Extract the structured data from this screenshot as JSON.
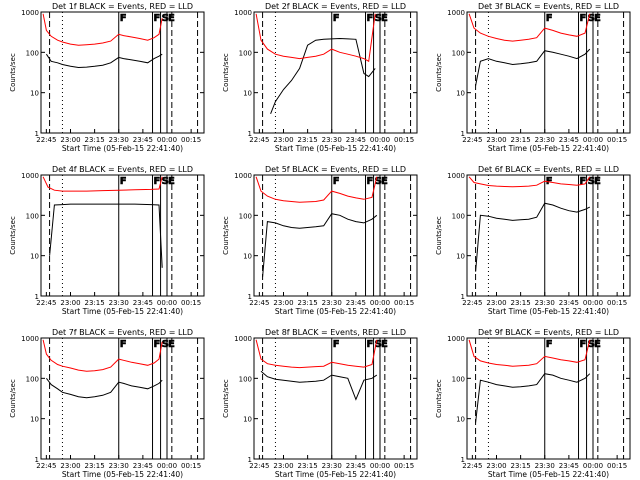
{
  "page": {
    "background": "#ffffff"
  },
  "colors": {
    "events": "#000000",
    "lld": "#ff0000",
    "axes": "#000000"
  },
  "shared": {
    "ylabel": "Counts/sec",
    "xlabel": "Start Time (05-Feb-15 22:41:40)",
    "x_ticks": [
      "22:45",
      "23:00",
      "23:15",
      "23:30",
      "23:45",
      "00:00",
      "00:15"
    ],
    "y_ticks": [
      "1",
      "10",
      "100",
      "1000"
    ],
    "markers": [
      {
        "label": "F",
        "time": "23:30"
      },
      {
        "label": "F",
        "time": "23:51"
      },
      {
        "label": "S",
        "time": "23:56"
      },
      {
        "label": "E",
        "time": "00:00"
      }
    ]
  },
  "chart_data": [
    {
      "type": "line",
      "title": "Det 1f BLACK = Events, RED = LLD",
      "xlim": [
        "22:41:40",
        "00:23"
      ],
      "ylim": [
        1,
        1000
      ],
      "yscale": "log",
      "series": [
        {
          "name": "Events",
          "color": "#000000",
          "x": [
            "22:45",
            "22:48",
            "22:52",
            "22:55",
            "23:00",
            "23:05",
            "23:10",
            "23:15",
            "23:20",
            "23:25",
            "23:30",
            "23:33",
            "23:38",
            "23:43",
            "23:48",
            "23:52",
            "23:55",
            "23:57"
          ],
          "y": [
            90,
            60,
            55,
            50,
            45,
            42,
            43,
            45,
            48,
            55,
            75,
            70,
            65,
            60,
            55,
            70,
            80,
            90
          ]
        },
        {
          "name": "LLD",
          "color": "#ff0000",
          "x": [
            "22:43",
            "22:45",
            "22:48",
            "22:52",
            "22:55",
            "23:00",
            "23:05",
            "23:10",
            "23:15",
            "23:20",
            "23:25",
            "23:30",
            "23:33",
            "23:38",
            "23:43",
            "23:48",
            "23:52",
            "23:55",
            "23:57"
          ],
          "y": [
            900,
            350,
            250,
            200,
            180,
            160,
            150,
            155,
            160,
            170,
            190,
            280,
            260,
            240,
            220,
            200,
            230,
            280,
            700
          ]
        }
      ]
    },
    {
      "type": "line",
      "title": "Det 2f BLACK = Events, RED = LLD",
      "xlim": [
        "22:41:40",
        "00:23"
      ],
      "ylim": [
        1,
        1000
      ],
      "yscale": "log",
      "series": [
        {
          "name": "Events",
          "color": "#000000",
          "x": [
            "22:52",
            "22:55",
            "23:00",
            "23:05",
            "23:10",
            "23:15",
            "23:20",
            "23:25",
            "23:30",
            "23:35",
            "23:40",
            "23:45",
            "23:50",
            "23:53",
            "23:57"
          ],
          "y": [
            3,
            6,
            12,
            20,
            40,
            150,
            200,
            210,
            215,
            220,
            215,
            210,
            30,
            25,
            40
          ]
        },
        {
          "name": "LLD",
          "color": "#ff0000",
          "x": [
            "22:43",
            "22:46",
            "22:50",
            "22:55",
            "23:00",
            "23:05",
            "23:10",
            "23:15",
            "23:20",
            "23:25",
            "23:30",
            "23:35",
            "23:40",
            "23:45",
            "23:50",
            "23:53",
            "23:57"
          ],
          "y": [
            900,
            200,
            120,
            90,
            80,
            75,
            70,
            75,
            80,
            90,
            120,
            100,
            90,
            80,
            70,
            60,
            900
          ]
        }
      ]
    },
    {
      "type": "line",
      "title": "Det 3f BLACK = Events, RED = LLD",
      "xlim": [
        "22:41:40",
        "00:23"
      ],
      "ylim": [
        1,
        1000
      ],
      "yscale": "log",
      "series": [
        {
          "name": "Events",
          "color": "#000000",
          "x": [
            "22:47",
            "22:50",
            "22:55",
            "23:00",
            "23:05",
            "23:10",
            "23:15",
            "23:20",
            "23:25",
            "23:30",
            "23:35",
            "23:40",
            "23:45",
            "23:50",
            "23:55",
            "23:58"
          ],
          "y": [
            15,
            60,
            70,
            60,
            55,
            50,
            52,
            55,
            60,
            110,
            100,
            90,
            80,
            70,
            90,
            120
          ]
        },
        {
          "name": "LLD",
          "color": "#ff0000",
          "x": [
            "22:43",
            "22:46",
            "22:50",
            "22:55",
            "23:00",
            "23:05",
            "23:10",
            "23:15",
            "23:20",
            "23:25",
            "23:30",
            "23:35",
            "23:40",
            "23:45",
            "23:50",
            "23:55",
            "23:58"
          ],
          "y": [
            900,
            400,
            300,
            250,
            220,
            200,
            190,
            200,
            210,
            230,
            400,
            350,
            300,
            270,
            250,
            300,
            900
          ]
        }
      ]
    },
    {
      "type": "line",
      "title": "Det 4f BLACK = Events, RED = LLD",
      "xlim": [
        "22:41:40",
        "00:23"
      ],
      "ylim": [
        1,
        1000
      ],
      "yscale": "log",
      "series": [
        {
          "name": "Events",
          "color": "#000000",
          "x": [
            "22:47",
            "22:50",
            "22:55",
            "23:00",
            "23:10",
            "23:20",
            "23:30",
            "23:40",
            "23:50",
            "23:55",
            "23:57"
          ],
          "y": [
            10,
            180,
            185,
            190,
            190,
            190,
            190,
            190,
            185,
            180,
            5
          ]
        },
        {
          "name": "LLD",
          "color": "#ff0000",
          "x": [
            "22:43",
            "22:46",
            "22:50",
            "22:55",
            "23:00",
            "23:10",
            "23:20",
            "23:30",
            "23:40",
            "23:50",
            "23:55",
            "23:57"
          ],
          "y": [
            900,
            500,
            420,
            400,
            400,
            400,
            410,
            420,
            430,
            440,
            450,
            900
          ]
        }
      ]
    },
    {
      "type": "line",
      "title": "Det 5f BLACK = Events, RED = LLD",
      "xlim": [
        "22:41:40",
        "00:23"
      ],
      "ylim": [
        1,
        1000
      ],
      "yscale": "log",
      "series": [
        {
          "name": "Events",
          "color": "#000000",
          "x": [
            "22:47",
            "22:50",
            "22:55",
            "23:00",
            "23:05",
            "23:10",
            "23:15",
            "23:20",
            "23:25",
            "23:30",
            "23:35",
            "23:40",
            "23:45",
            "23:50",
            "23:55",
            "23:58"
          ],
          "y": [
            3,
            70,
            65,
            55,
            50,
            48,
            50,
            52,
            55,
            110,
            100,
            80,
            70,
            65,
            80,
            100
          ]
        },
        {
          "name": "LLD",
          "color": "#ff0000",
          "x": [
            "22:43",
            "22:46",
            "22:50",
            "22:55",
            "23:00",
            "23:05",
            "23:10",
            "23:15",
            "23:20",
            "23:25",
            "23:30",
            "23:35",
            "23:40",
            "23:45",
            "23:50",
            "23:55",
            "23:58"
          ],
          "y": [
            900,
            400,
            300,
            250,
            230,
            220,
            210,
            215,
            220,
            240,
            400,
            350,
            300,
            270,
            250,
            280,
            900
          ]
        }
      ]
    },
    {
      "type": "line",
      "title": "Det 6f BLACK = Events, RED = LLD",
      "xlim": [
        "22:41:40",
        "00:23"
      ],
      "ylim": [
        1,
        1000
      ],
      "yscale": "log",
      "series": [
        {
          "name": "Events",
          "color": "#000000",
          "x": [
            "22:47",
            "22:50",
            "22:55",
            "23:00",
            "23:05",
            "23:10",
            "23:15",
            "23:20",
            "23:25",
            "23:30",
            "23:35",
            "23:40",
            "23:45",
            "23:50",
            "23:55",
            "23:58"
          ],
          "y": [
            4,
            100,
            95,
            85,
            80,
            75,
            78,
            80,
            90,
            200,
            180,
            150,
            130,
            120,
            140,
            160
          ]
        },
        {
          "name": "LLD",
          "color": "#ff0000",
          "x": [
            "22:43",
            "22:46",
            "22:50",
            "22:55",
            "23:00",
            "23:05",
            "23:10",
            "23:15",
            "23:20",
            "23:25",
            "23:30",
            "23:35",
            "23:40",
            "23:45",
            "23:50",
            "23:55",
            "23:58"
          ],
          "y": [
            900,
            650,
            600,
            550,
            530,
            520,
            510,
            520,
            530,
            560,
            700,
            650,
            600,
            580,
            560,
            600,
            900
          ]
        }
      ]
    },
    {
      "type": "line",
      "title": "Det 7f BLACK = Events, RED = LLD",
      "xlim": [
        "22:41:40",
        "00:23"
      ],
      "ylim": [
        1,
        1000
      ],
      "yscale": "log",
      "series": [
        {
          "name": "Events",
          "color": "#000000",
          "x": [
            "22:45",
            "22:48",
            "22:52",
            "22:55",
            "23:00",
            "23:05",
            "23:10",
            "23:15",
            "23:20",
            "23:25",
            "23:30",
            "23:33",
            "23:38",
            "23:43",
            "23:48",
            "23:52",
            "23:55",
            "23:57"
          ],
          "y": [
            100,
            70,
            55,
            45,
            40,
            35,
            33,
            35,
            38,
            45,
            80,
            75,
            65,
            60,
            55,
            65,
            75,
            90
          ]
        },
        {
          "name": "LLD",
          "color": "#ff0000",
          "x": [
            "22:43",
            "22:45",
            "22:48",
            "22:52",
            "22:55",
            "23:00",
            "23:05",
            "23:10",
            "23:15",
            "23:20",
            "23:25",
            "23:30",
            "23:33",
            "23:38",
            "23:43",
            "23:48",
            "23:52",
            "23:55",
            "23:57"
          ],
          "y": [
            900,
            400,
            280,
            220,
            200,
            180,
            160,
            150,
            155,
            165,
            190,
            300,
            280,
            250,
            230,
            210,
            240,
            300,
            800
          ]
        }
      ]
    },
    {
      "type": "line",
      "title": "Det 8f BLACK = Events, RED = LLD",
      "xlim": [
        "22:41:40",
        "00:23"
      ],
      "ylim": [
        1,
        1000
      ],
      "yscale": "log",
      "series": [
        {
          "name": "Events",
          "color": "#000000",
          "x": [
            "22:46",
            "22:50",
            "22:55",
            "23:00",
            "23:05",
            "23:10",
            "23:15",
            "23:20",
            "23:25",
            "23:30",
            "23:35",
            "23:40",
            "23:45",
            "23:50",
            "23:55",
            "23:58"
          ],
          "y": [
            150,
            110,
            95,
            90,
            85,
            80,
            82,
            85,
            90,
            120,
            110,
            100,
            30,
            90,
            100,
            120
          ]
        },
        {
          "name": "LLD",
          "color": "#ff0000",
          "x": [
            "22:43",
            "22:46",
            "22:50",
            "22:55",
            "23:00",
            "23:05",
            "23:10",
            "23:15",
            "23:20",
            "23:25",
            "23:30",
            "23:35",
            "23:40",
            "23:45",
            "23:50",
            "23:55",
            "23:58"
          ],
          "y": [
            900,
            300,
            230,
            210,
            200,
            190,
            185,
            190,
            195,
            200,
            250,
            230,
            210,
            200,
            190,
            220,
            900
          ]
        }
      ]
    },
    {
      "type": "line",
      "title": "Det 9f BLACK = Events, RED = LLD",
      "xlim": [
        "22:41:40",
        "00:23"
      ],
      "ylim": [
        1,
        1000
      ],
      "yscale": "log",
      "series": [
        {
          "name": "Events",
          "color": "#000000",
          "x": [
            "22:47",
            "22:50",
            "22:55",
            "23:00",
            "23:05",
            "23:10",
            "23:15",
            "23:20",
            "23:25",
            "23:30",
            "23:35",
            "23:40",
            "23:45",
            "23:50",
            "23:55",
            "23:58"
          ],
          "y": [
            8,
            90,
            80,
            70,
            65,
            60,
            62,
            65,
            70,
            130,
            120,
            100,
            90,
            80,
            100,
            130
          ]
        },
        {
          "name": "LLD",
          "color": "#ff0000",
          "x": [
            "22:43",
            "22:46",
            "22:50",
            "22:55",
            "23:00",
            "23:05",
            "23:10",
            "23:15",
            "23:20",
            "23:25",
            "23:30",
            "23:35",
            "23:40",
            "23:45",
            "23:50",
            "23:55",
            "23:58"
          ],
          "y": [
            900,
            350,
            270,
            240,
            220,
            210,
            200,
            205,
            210,
            230,
            350,
            320,
            290,
            270,
            250,
            290,
            900
          ]
        }
      ]
    }
  ]
}
